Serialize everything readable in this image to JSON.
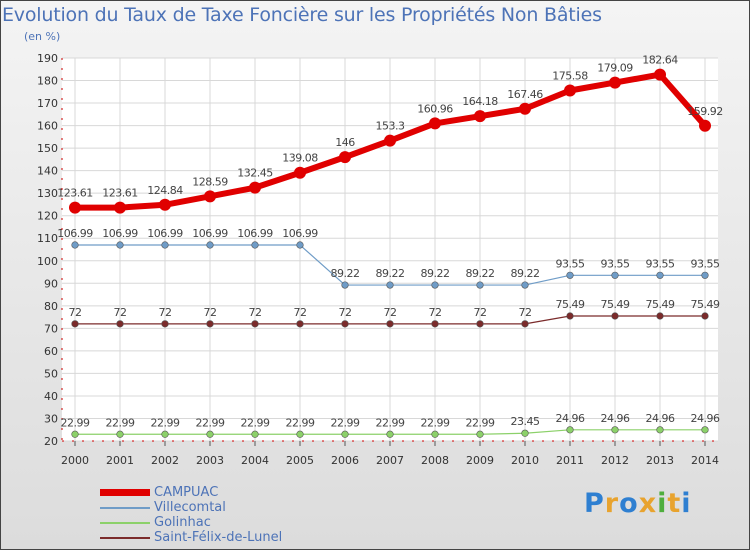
{
  "title": "Evolution du Taux de Taxe Foncière sur les Propriétés Non Bâties",
  "subtitle": "(en %)",
  "logo": {
    "letters": [
      "P",
      "r",
      "o",
      "x",
      "i",
      "t",
      "i"
    ],
    "colors": [
      "#2e7fd1",
      "#e8a32e",
      "#2e7fd1",
      "#e8a32e",
      "#4fae3d",
      "#e8a32e",
      "#2e7fd1"
    ]
  },
  "chart_data": {
    "type": "line",
    "title": "Evolution du Taux de Taxe Foncière sur les Propriétés Non Bâties",
    "ylabel": "(en %)",
    "xlabel": "",
    "x": [
      "2000",
      "2001",
      "2002",
      "2003",
      "2004",
      "2005",
      "2006",
      "2007",
      "2008",
      "2009",
      "2010",
      "2011",
      "2012",
      "2013",
      "2014"
    ],
    "ylim": [
      20,
      190
    ],
    "yticks": [
      20,
      30,
      40,
      50,
      60,
      70,
      80,
      90,
      100,
      110,
      120,
      130,
      140,
      150,
      160,
      170,
      180,
      190
    ],
    "grid": true,
    "legend_position": "bottom-left",
    "series": [
      {
        "name": "CAMPUAC",
        "color": "#e00000",
        "labels": [
          "123.61",
          "123.61",
          "124.84",
          "128.59",
          "132.45",
          "139.08",
          "146",
          "153.3",
          "160.96",
          "164.18",
          "167.46",
          "175.58",
          "179.09",
          "182.64",
          "159.92"
        ],
        "values": [
          123.61,
          123.61,
          124.84,
          128.59,
          132.45,
          139.08,
          146,
          153.3,
          160.96,
          164.18,
          167.46,
          175.58,
          179.09,
          182.64,
          159.92
        ]
      },
      {
        "name": "Villecomtal",
        "color": "#6f9cc7",
        "labels": [
          "106.99",
          "106.99",
          "106.99",
          "106.99",
          "106.99",
          "106.99",
          "89.22",
          "89.22",
          "89.22",
          "89.22",
          "89.22",
          "93.55",
          "93.55",
          "93.55",
          "93.55"
        ],
        "values": [
          106.99,
          106.99,
          106.99,
          106.99,
          106.99,
          106.99,
          89.22,
          89.22,
          89.22,
          89.22,
          89.22,
          93.55,
          93.55,
          93.55,
          93.55
        ]
      },
      {
        "name": "Golinhac",
        "color": "#8cd16a",
        "labels": [
          "22.99",
          "22.99",
          "22.99",
          "22.99",
          "22.99",
          "22.99",
          "22.99",
          "22.99",
          "22.99",
          "22.99",
          "23.45",
          "24.96",
          "24.96",
          "24.96",
          "24.96"
        ],
        "values": [
          22.99,
          22.99,
          22.99,
          22.99,
          22.99,
          22.99,
          22.99,
          22.99,
          22.99,
          22.99,
          23.45,
          24.96,
          24.96,
          24.96,
          24.96
        ]
      },
      {
        "name": "Saint-Félix-de-Lunel",
        "color": "#7b2b2b",
        "labels": [
          "72",
          "72",
          "72",
          "72",
          "72",
          "72",
          "72",
          "72",
          "72",
          "72",
          "72",
          "75.49",
          "75.49",
          "75.49",
          "75.49"
        ],
        "values": [
          72,
          72,
          72,
          72,
          72,
          72,
          72,
          72,
          72,
          72,
          72,
          75.49,
          75.49,
          75.49,
          75.49
        ]
      }
    ]
  }
}
